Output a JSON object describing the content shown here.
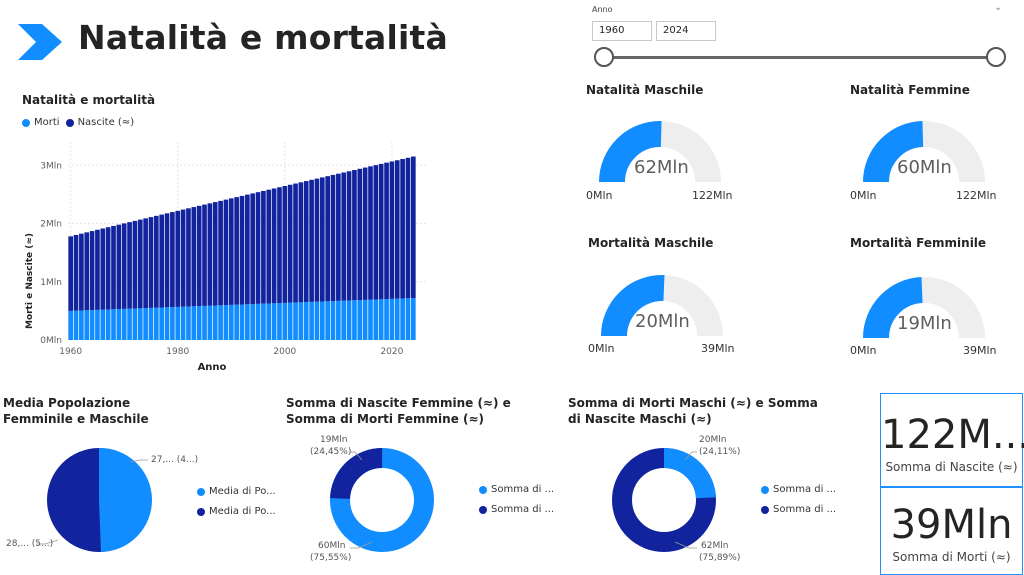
{
  "page": {
    "title": "Natalità e mortalità"
  },
  "slicer": {
    "label": "Anno",
    "from": "1960",
    "to": "2024"
  },
  "main_chart": {
    "title": "Natalità e mortalità",
    "legend": [
      {
        "name": "Morti",
        "color": "#118DFF"
      },
      {
        "name": "Nascite (≈)",
        "color": "#12239E"
      }
    ]
  },
  "gauges": {
    "natalita_maschile": {
      "title": "Natalità Maschile",
      "value_label": "62Mln",
      "min": "0Mln",
      "max": "122Mln",
      "fraction": 0.508
    },
    "natalita_femmine": {
      "title": "Natalità Femmine",
      "value_label": "60Mln",
      "min": "0Mln",
      "max": "122Mln",
      "fraction": 0.492
    },
    "mortalita_maschile": {
      "title": "Mortalità Maschile",
      "value_label": "20Mln",
      "min": "0Mln",
      "max": "39Mln",
      "fraction": 0.513
    },
    "mortalita_femminile": {
      "title": "Mortalità Femminile",
      "value_label": "19Mln",
      "min": "0Mln",
      "max": "39Mln",
      "fraction": 0.487
    }
  },
  "pie1": {
    "title": "Media Popolazione Femminile e Maschile",
    "label_a": "27,... (4...)",
    "label_b": "28,... (5...)",
    "legend": [
      "Media di Po...",
      "Media di Po..."
    ]
  },
  "donut1": {
    "title": "Somma di Nascite Femmine (≈) e Somma di Morti Femmine (≈)",
    "label_small_1": "19Mln",
    "label_small_2": "(24,45%)",
    "label_big_1": "60Mln",
    "label_big_2": "(75,55%)",
    "legend": [
      "Somma di ...",
      "Somma di ..."
    ]
  },
  "donut2": {
    "title": "Somma di Morti Maschi (≈) e Somma di Nascite Maschi (≈)",
    "label_small_1": "20Mln",
    "label_small_2": "(24,11%)",
    "label_big_1": "62Mln",
    "label_big_2": "(75,89%)",
    "legend": [
      "Somma di ...",
      "Somma di ..."
    ]
  },
  "cards": {
    "nascite": {
      "value": "122M...",
      "label": "Somma di Nascite (≈)"
    },
    "morti": {
      "value": "39Mln",
      "label": "Somma di Morti (≈)"
    }
  },
  "colors": {
    "light": "#118DFF",
    "dark": "#12239E",
    "track": "#EFEEEE"
  },
  "chart_data": {
    "type": "bar",
    "stacked": true,
    "title": "Natalità e mortalità",
    "xlabel": "Anno",
    "ylabel": "Morti e Nascite (≈)",
    "x_ticks": [
      "1960",
      "1980",
      "2000",
      "2020"
    ],
    "y_ticks": [
      "0Mln",
      "1Mln",
      "2Mln",
      "3Mln"
    ],
    "ylim": [
      0,
      3400000
    ],
    "x_start": 1960,
    "x_end": 2024,
    "series": [
      {
        "name": "Morti",
        "start": 500000,
        "end": 720000
      },
      {
        "name": "Nascite (≈)",
        "total_start": 1780000,
        "total_end": 3150000
      }
    ]
  }
}
